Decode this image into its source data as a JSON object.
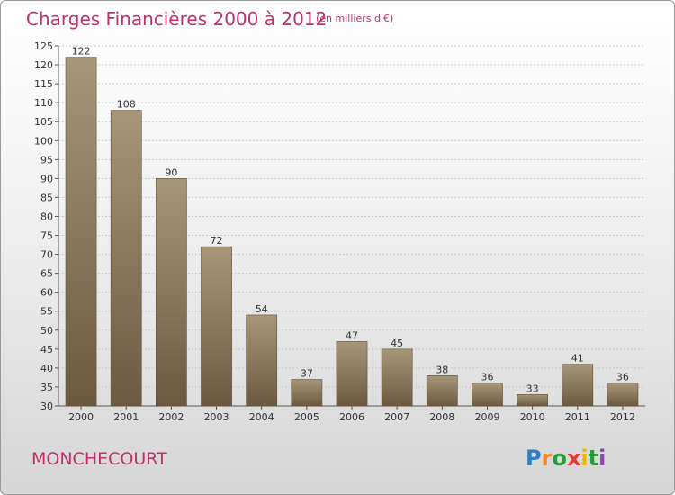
{
  "chart_data": {
    "type": "bar",
    "title": "Charges Financières 2000 à 2012",
    "subtitle": "(en milliers d'€)",
    "categories": [
      "2000",
      "2001",
      "2002",
      "2003",
      "2004",
      "2005",
      "2006",
      "2007",
      "2008",
      "2009",
      "2010",
      "2011",
      "2012"
    ],
    "values": [
      122,
      108,
      90,
      72,
      54,
      37,
      47,
      45,
      38,
      36,
      33,
      41,
      36
    ],
    "ylim": [
      30,
      125
    ],
    "yticks": [
      30,
      35,
      40,
      45,
      50,
      55,
      60,
      65,
      70,
      75,
      80,
      85,
      90,
      95,
      100,
      105,
      110,
      115,
      120,
      125
    ],
    "grid": true,
    "xlabel": "",
    "ylabel": "",
    "colors": {
      "bar": "#8c7a5e",
      "bar_light": "#a69779",
      "bar_dark": "#6b5a40",
      "title": "#c0306a"
    }
  },
  "footer": {
    "commune": "MONCHECOURT",
    "logo": [
      "P",
      "r",
      "o",
      "x",
      "i",
      "t",
      "i"
    ],
    "logo_colors": [
      "#2d7fc1",
      "#f08a24",
      "#2d9b3a",
      "#e23a2e",
      "#f2b400",
      "#2d9b3a",
      "#8e44ad"
    ]
  }
}
